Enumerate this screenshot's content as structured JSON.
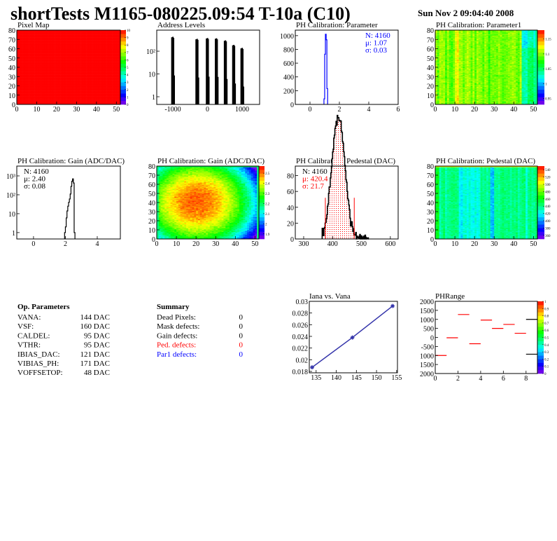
{
  "header": {
    "title": "shortTests M1165-080225.09:54 T-10a (C10)",
    "date": "Sun Nov  2 09:04:40 2008"
  },
  "colors": {
    "red": "#ff0000",
    "blue": "#0000ff",
    "line_blue": "#3333aa",
    "black": "#000000"
  },
  "chart_data": [
    {
      "id": "pixel-map",
      "type": "heatmap",
      "title": "Pixel Map",
      "xlim": [
        0,
        52
      ],
      "ylim": [
        0,
        80
      ],
      "xticks": [
        0,
        10,
        20,
        30,
        40,
        50
      ],
      "yticks": [
        0,
        10,
        20,
        30,
        40,
        50,
        60,
        70,
        80
      ],
      "zlim": [
        0,
        10
      ],
      "zticks": [
        "0",
        "1",
        "2",
        "3",
        "4",
        "5",
        "6",
        "7",
        "8",
        "9",
        "10"
      ],
      "pattern": "uniform-max"
    },
    {
      "id": "address-levels",
      "type": "bar",
      "title": "Address Levels",
      "xlim": [
        -1465,
        1505
      ],
      "ylim": [
        0.46,
        840
      ],
      "log_y": true,
      "xticks": [
        {
          "v": -1000,
          "l": "-1000"
        },
        {
          "v": 0,
          "l": "0"
        },
        {
          "v": 1000,
          "l": "1000"
        }
      ],
      "yticks": [
        {
          "v": 1,
          "l": "1"
        },
        {
          "v": 10,
          "l": "10"
        },
        {
          "v": 100,
          "l": "10²"
        }
      ],
      "peaks": [
        {
          "x": -1000,
          "count": 430
        },
        {
          "x": -300,
          "count": 350
        },
        {
          "x": 0,
          "count": 380
        },
        {
          "x": 260,
          "count": 370
        },
        {
          "x": 520,
          "count": 300
        },
        {
          "x": 760,
          "count": 190
        },
        {
          "x": 1000,
          "count": 140
        }
      ]
    },
    {
      "id": "ph-parameter",
      "type": "bar",
      "title": "PH Calibration: Parameter",
      "xlim": [
        -1,
        6
      ],
      "ylim": [
        0,
        1080
      ],
      "xticks": [
        {
          "v": 0,
          "l": "0"
        },
        {
          "v": 2,
          "l": "2"
        },
        {
          "v": 4,
          "l": "4"
        },
        {
          "v": 6,
          "l": "6"
        }
      ],
      "yticks": [
        {
          "v": 0,
          "l": "0"
        },
        {
          "v": 200,
          "l": "200"
        },
        {
          "v": 400,
          "l": "400"
        },
        {
          "v": 600,
          "l": "600"
        },
        {
          "v": 800,
          "l": "800"
        },
        {
          "v": 1000,
          "l": "1000"
        }
      ],
      "bin_width": 0.05,
      "bins_x": [
        0.95,
        1.0,
        1.05,
        1.1,
        1.15
      ],
      "bins_y": [
        80,
        730,
        1020,
        940,
        230
      ],
      "stats": [
        {
          "text": "N: 4160",
          "color": "#0000ff"
        },
        {
          "text": "μ: 1.07",
          "color": "#0000ff"
        },
        {
          "text": "σ: 0.03",
          "color": "#0000ff"
        }
      ],
      "line_color": "#0000ff"
    },
    {
      "id": "ph-parameter1-map",
      "type": "heatmap",
      "title": "PH Calibration: Parameter1",
      "xlim": [
        0,
        52
      ],
      "ylim": [
        0,
        80
      ],
      "xticks": [
        0,
        10,
        20,
        30,
        40,
        50
      ],
      "yticks": [
        0,
        10,
        20,
        30,
        40,
        50,
        60,
        70,
        80
      ],
      "zlim": [
        0.93,
        1.18
      ],
      "zticks": [
        "0.95",
        "1",
        "1.05",
        "1.1",
        "1.15"
      ],
      "pattern": "parameter1"
    },
    {
      "id": "gain-hist",
      "type": "bar",
      "title": "PH Calibration: Gain (ADC/DAC)",
      "xlim": [
        -1.05,
        5.45
      ],
      "ylim": [
        0.46,
        3300
      ],
      "log_y": true,
      "xticks": [
        {
          "v": 0,
          "l": "0"
        },
        {
          "v": 2,
          "l": "2"
        },
        {
          "v": 4,
          "l": "4"
        }
      ],
      "yticks": [
        {
          "v": 1,
          "l": "1"
        },
        {
          "v": 10,
          "l": "10"
        },
        {
          "v": 100,
          "l": "10²"
        },
        {
          "v": 1000,
          "l": "10³"
        }
      ],
      "bin_width": 0.05,
      "bins_x": [
        1.95,
        2.0,
        2.05,
        2.1,
        2.15,
        2.2,
        2.25,
        2.3,
        2.35,
        2.4,
        2.45,
        2.5,
        2.55
      ],
      "bins_y": [
        1,
        2,
        6,
        14,
        25,
        40,
        60,
        110,
        280,
        520,
        700,
        420,
        1
      ],
      "stats": [
        {
          "text": "N: 4160",
          "color": "#000000"
        },
        {
          "text": "μ: 2.40",
          "color": "#000000"
        },
        {
          "text": "σ: 0.08",
          "color": "#000000"
        }
      ],
      "line_color": "#000000"
    },
    {
      "id": "gain-map",
      "type": "heatmap",
      "title": "PH Calibration: Gain (ADC/DAC)",
      "xlim": [
        0,
        52
      ],
      "ylim": [
        0,
        80
      ],
      "xticks": [
        0,
        10,
        20,
        30,
        40,
        50
      ],
      "yticks": [
        0,
        10,
        20,
        30,
        40,
        50,
        60,
        70,
        80
      ],
      "zlim": [
        1.85,
        2.57
      ],
      "zticks": [
        "1.9",
        "2",
        "2.1",
        "2.2",
        "2.3",
        "2.4",
        "2.5"
      ],
      "pattern": "gain"
    },
    {
      "id": "pedestal-hist",
      "type": "bar",
      "title": "PH Calibration: Pedestal (DAC)",
      "xlim": [
        271,
        627
      ],
      "ylim": [
        0,
        92
      ],
      "xticks": [
        {
          "v": 300,
          "l": "300"
        },
        {
          "v": 400,
          "l": "400"
        },
        {
          "v": 500,
          "l": "500"
        },
        {
          "v": 600,
          "l": "600"
        }
      ],
      "yticks": [
        {
          "v": 0,
          "l": "0"
        },
        {
          "v": 20,
          "l": "20"
        },
        {
          "v": 40,
          "l": "40"
        },
        {
          "v": 60,
          "l": "60"
        },
        {
          "v": 80,
          "l": "80"
        }
      ],
      "N": 4160,
      "mean": 420.4,
      "sigma": 21.7,
      "cuts": [
        375,
        475
      ],
      "stats": [
        {
          "text": "N: 4160",
          "color": "#000000"
        },
        {
          "text": "μ: 420.4",
          "color": "#ff0000"
        },
        {
          "text": "σ: 21.7",
          "color": "#ff0000"
        }
      ],
      "line_color": "#000000"
    },
    {
      "id": "pedestal-map",
      "type": "heatmap",
      "title": "PH Calibration: Pedestal (DAC)",
      "xlim": [
        0,
        52
      ],
      "ylim": [
        0,
        80
      ],
      "xticks": [
        0,
        10,
        20,
        30,
        40,
        50
      ],
      "yticks": [
        0,
        10,
        20,
        30,
        40,
        50,
        60,
        70,
        80
      ],
      "zlim": [
        350,
        550
      ],
      "zticks": [
        "360",
        "380",
        "400",
        "420",
        "440",
        "460",
        "480",
        "500",
        "520",
        "540"
      ],
      "pattern": "pedestal"
    },
    {
      "id": "iana-vs-vana",
      "type": "line",
      "title": "Iana vs. Vana",
      "xlim": [
        133.3,
        155.2
      ],
      "ylim": [
        0.01776,
        0.03
      ],
      "xticks": [
        {
          "v": 135,
          "l": "135"
        },
        {
          "v": 140,
          "l": "140"
        },
        {
          "v": 145,
          "l": "145"
        },
        {
          "v": 150,
          "l": "150"
        },
        {
          "v": 155,
          "l": "155"
        }
      ],
      "yticks": [
        {
          "v": 0.018,
          "l": "0.018"
        },
        {
          "v": 0.02,
          "l": "0.02"
        },
        {
          "v": 0.022,
          "l": "0.022"
        },
        {
          "v": 0.024,
          "l": "0.024"
        },
        {
          "v": 0.026,
          "l": "0.026"
        },
        {
          "v": 0.028,
          "l": "0.028"
        },
        {
          "v": 0.03,
          "l": "0.03"
        }
      ],
      "x": [
        134,
        144,
        154
      ],
      "y": [
        0.0187,
        0.0238,
        0.0292
      ],
      "line_color": "#3333aa"
    },
    {
      "id": "phrange",
      "type": "heatmap",
      "title": "PHRange",
      "xlim": [
        0,
        9
      ],
      "ylim": [
        -2000,
        2000
      ],
      "xticks": [
        {
          "v": 0,
          "l": "0"
        },
        {
          "v": 2,
          "l": "2"
        },
        {
          "v": 4,
          "l": "4"
        },
        {
          "v": 6,
          "l": "6"
        },
        {
          "v": 8,
          "l": "8"
        }
      ],
      "yticks": [
        {
          "v": 2000,
          "l": "2000"
        },
        {
          "v": 1500,
          "l": "1500"
        },
        {
          "v": 1000,
          "l": "1000"
        },
        {
          "v": 500,
          "l": "500"
        },
        {
          "v": 0,
          "l": "0"
        },
        {
          "v": -500,
          "l": "-500"
        },
        {
          "v": -1000,
          "l": "1000"
        },
        {
          "v": -1500,
          "l": "1500"
        },
        {
          "v": -2000,
          "l": "2000"
        }
      ],
      "zlim": [
        0,
        1
      ],
      "zticks": [
        "0",
        "0.1",
        "0.2",
        "0.3",
        "0.4",
        "0.5",
        "0.6",
        "0.7",
        "0.8",
        "0.9",
        "1"
      ],
      "segments": [
        {
          "x0": 0,
          "x1": 1,
          "y": -1000,
          "color": "#ff0000"
        },
        {
          "x0": 1,
          "x1": 2,
          "y": -20,
          "color": "#ff0000"
        },
        {
          "x0": 2,
          "x1": 3,
          "y": 1270,
          "color": "#ff0000"
        },
        {
          "x0": 3,
          "x1": 4,
          "y": -350,
          "color": "#ff0000"
        },
        {
          "x0": 4,
          "x1": 5,
          "y": 960,
          "color": "#ff0000"
        },
        {
          "x0": 5,
          "x1": 6,
          "y": 500,
          "color": "#ff0000"
        },
        {
          "x0": 6,
          "x1": 7,
          "y": 720,
          "color": "#ff0000"
        },
        {
          "x0": 7,
          "x1": 8,
          "y": 230,
          "color": "#ff0000"
        },
        {
          "x0": 8,
          "x1": 9,
          "y": 1000,
          "color": "#000000"
        },
        {
          "x0": 8,
          "x1": 9,
          "y": -930,
          "color": "#000000"
        }
      ]
    }
  ],
  "op_parameters": {
    "title": "Op. Parameters",
    "rows": [
      {
        "name": "VANA:",
        "value": "144 DAC"
      },
      {
        "name": "VSF:",
        "value": "160 DAC"
      },
      {
        "name": "CALDEL:",
        "value": "95 DAC"
      },
      {
        "name": "VTHR:",
        "value": "95 DAC"
      },
      {
        "name": "IBIAS_DAC:",
        "value": "121 DAC"
      },
      {
        "name": "VIBIAS_PH:",
        "value": "171 DAC"
      },
      {
        "name": "VOFFSETOP:",
        "value": "48 DAC"
      }
    ]
  },
  "summary": {
    "title": "Summary",
    "rows": [
      {
        "label": "Dead Pixels:",
        "value": "0",
        "color": "#000000"
      },
      {
        "label": "Mask defects:",
        "value": "0",
        "color": "#000000"
      },
      {
        "label": "Gain defects:",
        "value": "0",
        "color": "#000000"
      },
      {
        "label": "Ped. defects:",
        "value": "0",
        "color": "#ff0000"
      },
      {
        "label": "Par1 defects:",
        "value": "0",
        "color": "#0000ff"
      }
    ]
  }
}
